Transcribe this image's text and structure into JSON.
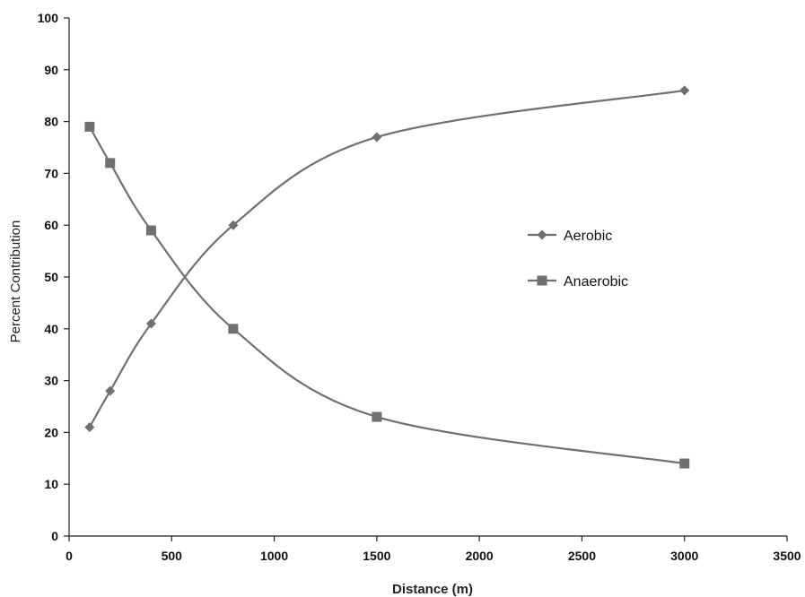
{
  "chart_data": {
    "type": "line",
    "title": "",
    "xlabel": "Distance (m)",
    "ylabel": "Percent Contribution",
    "xlim": [
      0,
      3500
    ],
    "ylim": [
      0,
      100
    ],
    "xticks": [
      0,
      500,
      1000,
      1500,
      2000,
      2500,
      3000,
      3500
    ],
    "yticks": [
      0,
      10,
      20,
      30,
      40,
      50,
      60,
      70,
      80,
      90,
      100
    ],
    "grid": false,
    "legend_position": "right",
    "line_color": "#707070",
    "series": [
      {
        "name": "Aerobic",
        "marker": "diamond",
        "x": [
          100,
          200,
          400,
          800,
          1500,
          3000
        ],
        "y": [
          21,
          28,
          41,
          60,
          77,
          86
        ]
      },
      {
        "name": "Anaerobic",
        "marker": "square",
        "x": [
          100,
          200,
          400,
          800,
          1500,
          3000
        ],
        "y": [
          79,
          72,
          59,
          40,
          23,
          14
        ]
      }
    ]
  }
}
